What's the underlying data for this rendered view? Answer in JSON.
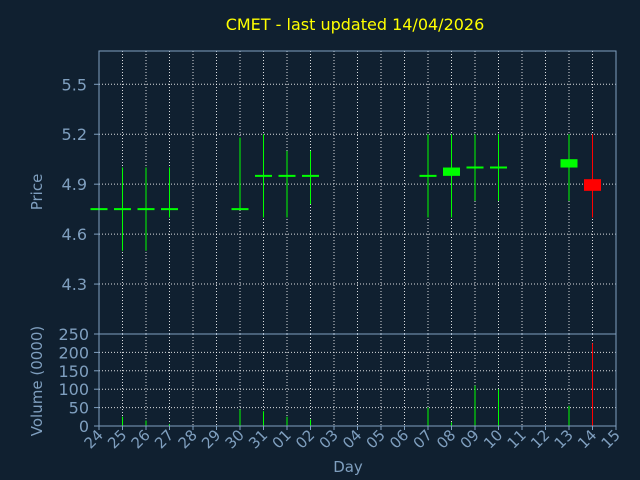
{
  "colors": {
    "background": "#102030",
    "title": "#ffff00",
    "axis": "#7f9fbf",
    "label": "#7f9fbf",
    "grid": "#ffffff",
    "up": "#00ff00",
    "down": "#ff0000",
    "doji": "#00ff00"
  },
  "chart_data": {
    "type": "candlestick",
    "title": "CMET - last updated 14/04/2026",
    "xlabel": "Day",
    "price_panel": {
      "ylabel": "Price",
      "ylim": [
        4.0,
        5.7
      ],
      "yticks": [
        4.3,
        4.6,
        4.9,
        5.2,
        5.5
      ],
      "ytick_labels": [
        "4.3",
        "4.6",
        "4.9",
        "5.2",
        "5.5"
      ],
      "grid": true
    },
    "volume_panel": {
      "ylabel": "Volume (0000)",
      "ylim": [
        0,
        250
      ],
      "yticks": [
        0,
        50,
        100,
        150,
        200,
        250
      ],
      "ytick_labels": [
        "0",
        "50",
        "100",
        "150",
        "200",
        "250"
      ],
      "grid": true
    },
    "x_tick_labels": [
      "24",
      "25",
      "26",
      "27",
      "28",
      "29",
      "30",
      "31",
      "01",
      "02",
      "03",
      "04",
      "05",
      "06",
      "07",
      "08",
      "09",
      "10",
      "11",
      "12",
      "13",
      "14",
      "15"
    ],
    "candles": [
      {
        "x": "24",
        "open": 4.75,
        "high": 4.75,
        "low": 4.75,
        "close": 4.75,
        "volume": 0
      },
      {
        "x": "25",
        "open": 4.75,
        "high": 5.0,
        "low": 4.5,
        "close": 4.75,
        "volume": 25
      },
      {
        "x": "26",
        "open": 4.75,
        "high": 5.0,
        "low": 4.5,
        "close": 4.75,
        "volume": 15
      },
      {
        "x": "27",
        "open": 4.75,
        "high": 5.0,
        "low": 4.7,
        "close": 4.75,
        "volume": 5
      },
      {
        "x": "30",
        "open": 4.75,
        "high": 5.18,
        "low": 4.75,
        "close": 4.75,
        "volume": 45
      },
      {
        "x": "31",
        "open": 4.95,
        "high": 5.2,
        "low": 4.7,
        "close": 4.95,
        "volume": 40
      },
      {
        "x": "01",
        "open": 4.95,
        "high": 5.1,
        "low": 4.7,
        "close": 4.95,
        "volume": 25
      },
      {
        "x": "02",
        "open": 4.95,
        "high": 5.1,
        "low": 4.78,
        "close": 4.95,
        "volume": 18
      },
      {
        "x": "07",
        "open": 4.95,
        "high": 5.2,
        "low": 4.7,
        "close": 4.95,
        "volume": 50
      },
      {
        "x": "08",
        "open": 4.95,
        "high": 5.2,
        "low": 4.7,
        "close": 5.0,
        "volume": 10
      },
      {
        "x": "09",
        "open": 5.0,
        "high": 5.2,
        "low": 4.8,
        "close": 5.0,
        "volume": 110
      },
      {
        "x": "10",
        "open": 5.0,
        "high": 5.2,
        "low": 4.8,
        "close": 5.0,
        "volume": 100
      },
      {
        "x": "13",
        "open": 5.0,
        "high": 5.2,
        "low": 4.8,
        "close": 5.05,
        "volume": 55
      },
      {
        "x": "14",
        "open": 4.93,
        "high": 5.2,
        "low": 4.7,
        "close": 4.86,
        "volume": 225
      }
    ]
  }
}
